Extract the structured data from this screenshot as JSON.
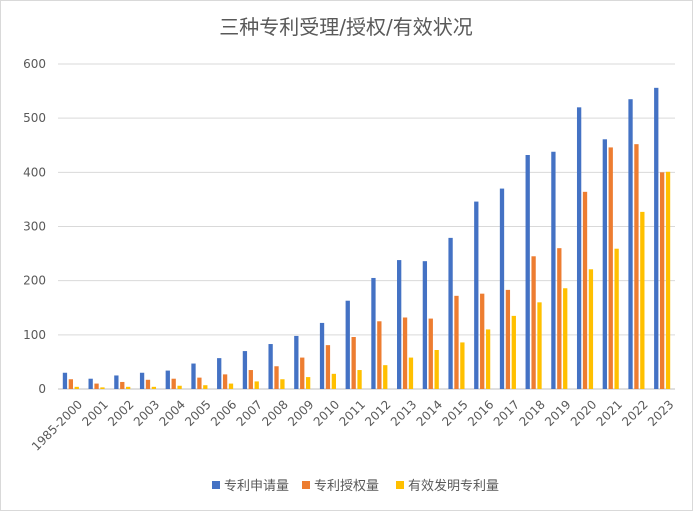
{
  "chart_data": {
    "type": "bar",
    "title": "三种专利受理/授权/有效状况",
    "categories": [
      "1985-2000",
      "2001",
      "2002",
      "2003",
      "2004",
      "2005",
      "2006",
      "2007",
      "2008",
      "2009",
      "2010",
      "2011",
      "2012",
      "2013",
      "2014",
      "2015",
      "2016",
      "2017",
      "2018",
      "2019",
      "2020",
      "2021",
      "2022",
      "2023"
    ],
    "series": [
      {
        "name": "专利申请量",
        "color": "#4472c4",
        "values": [
          30,
          19,
          25,
          30,
          34,
          47,
          57,
          70,
          83,
          98,
          122,
          163,
          205,
          238,
          236,
          279,
          346,
          370,
          432,
          438,
          520,
          461,
          535,
          556
        ]
      },
      {
        "name": "专利授权量",
        "color": "#ed7d31",
        "values": [
          18,
          10,
          13,
          17,
          19,
          21,
          27,
          35,
          42,
          58,
          81,
          96,
          125,
          132,
          130,
          172,
          176,
          183,
          245,
          260,
          364,
          446,
          452,
          400
        ]
      },
      {
        "name": "有效发明专利量",
        "color": "#ffc000",
        "values": [
          4,
          3,
          4,
          4,
          6,
          7,
          10,
          14,
          18,
          22,
          28,
          35,
          44,
          58,
          72,
          86,
          110,
          135,
          160,
          186,
          221,
          259,
          327,
          401
        ]
      }
    ],
    "ylim": [
      0,
      600
    ],
    "yticks": [
      "0",
      "100",
      "200",
      "300",
      "400",
      "500",
      "600"
    ],
    "grid": true,
    "legend": "bottom"
  }
}
